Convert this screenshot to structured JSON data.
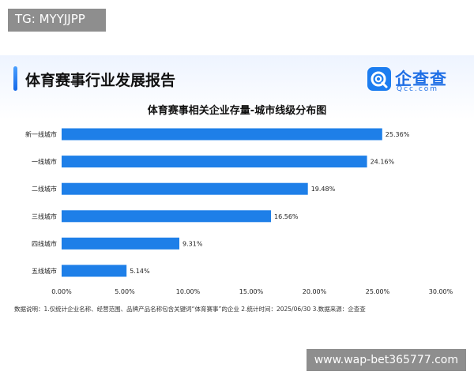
{
  "watermarks": {
    "top": "TG: MYYJJPP",
    "bottom": "www.wap-bet365777.com"
  },
  "report": {
    "title": "体育赛事行业发展报告"
  },
  "logo": {
    "name": "企查查",
    "domain": "Qcc.com",
    "color": "#1c7df0"
  },
  "chart_data": {
    "type": "bar",
    "orientation": "horizontal",
    "title": "体育赛事相关企业存量-城市线级分布图",
    "categories": [
      "新一线城市",
      "一线城市",
      "二线城市",
      "三线城市",
      "四线城市",
      "五线城市"
    ],
    "values": [
      25.36,
      24.16,
      19.48,
      16.56,
      9.31,
      5.14
    ],
    "value_labels": [
      "25.36%",
      "24.16%",
      "19.48%",
      "16.56%",
      "9.31%",
      "5.14%"
    ],
    "xlim": [
      0,
      30
    ],
    "xticks": [
      0,
      5,
      10,
      15,
      20,
      25,
      30
    ],
    "xtick_labels": [
      "0.00%",
      "5.00%",
      "10.00%",
      "15.00%",
      "20.00%",
      "25.00%",
      "30.00%"
    ],
    "xlabel": "",
    "ylabel": "",
    "grid": false,
    "bar_color": "#1e7fe8"
  },
  "footnote": "数据说明：1.仅统计企业名称、经营范围、品牌产品名称包含关键词“体育赛事”的企业  2.统计时间：2025/06/30  3.数据来源：企查查"
}
